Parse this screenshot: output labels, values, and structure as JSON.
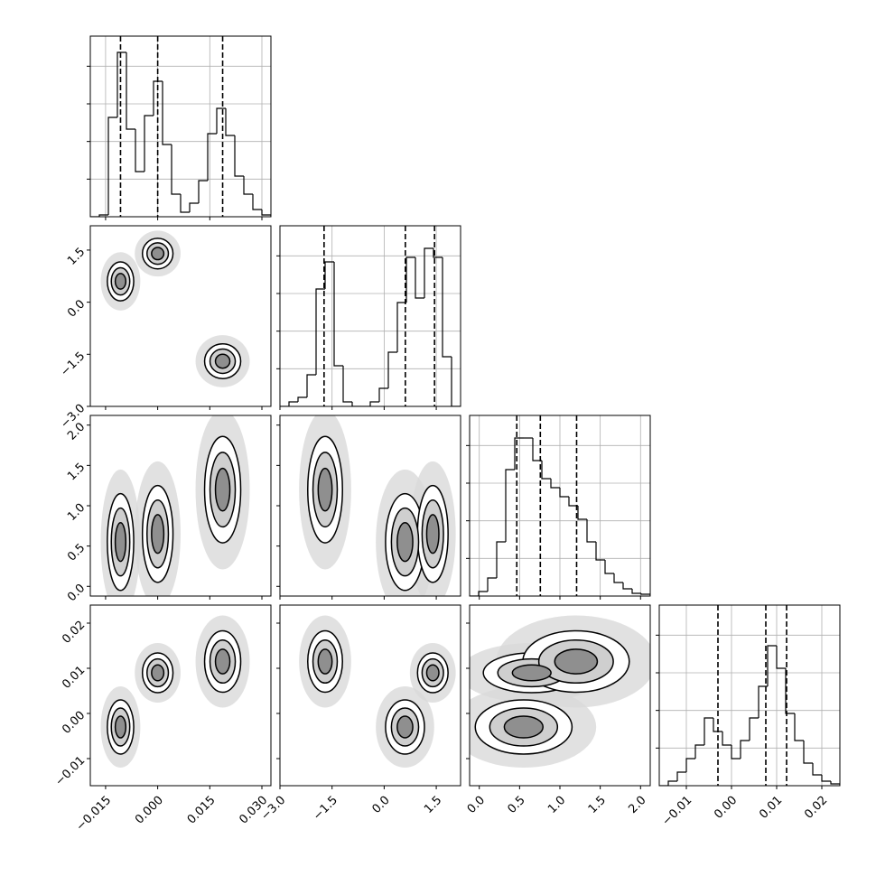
{
  "chart_data": {
    "type": "corner",
    "hist_ylim": [
      0,
      4800
    ],
    "hist_yticks": [
      1000,
      2000,
      3000,
      4000
    ],
    "grid": true,
    "color": "#000000",
    "contour_levels": [
      3,
      2,
      1.4,
      0.8
    ],
    "params": [
      {
        "lim": [
          -0.0194,
          0.0326
        ],
        "ticks": [
          {
            "value": -0.015,
            "label": "−0.015"
          },
          {
            "value": 0,
            "label": "0.000"
          },
          0.015,
          {
            "value": 0.03,
            "label": "0.030"
          }
        ],
        "bins": [
          -0.0194,
          -0.0168,
          -0.0142,
          -0.0116,
          -0.009,
          -0.0064,
          -0.0038,
          -0.0012,
          0.0014,
          0.004,
          0.0066,
          0.0092,
          0.0118,
          0.0144,
          0.017,
          0.0196,
          0.0222,
          0.0248,
          0.0274,
          0.03,
          0.0326
        ],
        "counts": [
          0,
          48,
          2640,
          4368,
          2328,
          1200,
          2688,
          3600,
          1920,
          600,
          120,
          360,
          960,
          2208,
          2880,
          2160,
          1080,
          600,
          192,
          48
        ],
        "quantiles": [
          -0.0107,
          0.0,
          0.0187
        ]
      },
      {
        "lim": [
          -3.0,
          2.2
        ],
        "ticks": [
          {
            "value": -3,
            "label": "−3.0"
          },
          {
            "value": -1.5,
            "label": "−1.5"
          },
          {
            "value": 0,
            "label": "0.0"
          },
          1.5
        ],
        "bins": [
          -3.0,
          -2.74,
          -2.48,
          -2.22,
          -1.96,
          -1.7,
          -1.44,
          -1.18,
          -0.92,
          -0.66,
          -0.4,
          -0.14,
          0.12,
          0.38,
          0.64,
          0.9,
          1.16,
          1.42,
          1.68,
          1.94,
          2.2
        ],
        "counts": [
          0,
          120,
          240,
          840,
          3120,
          3840,
          1080,
          120,
          0,
          0,
          120,
          480,
          1440,
          2760,
          3960,
          2880,
          4200,
          3960,
          1320,
          0
        ],
        "quantiles": [
          -1.73,
          0.61,
          1.45
        ]
      },
      {
        "lim": [
          -0.12,
          2.12
        ],
        "ticks": [
          {
            "value": 0,
            "label": "0.0"
          },
          0.5,
          {
            "value": 1,
            "label": "1.0"
          },
          1.5,
          {
            "value": 2,
            "label": "2.0"
          }
        ],
        "bins": [
          -0.12,
          -0.008,
          0.104,
          0.216,
          0.328,
          0.44,
          0.552,
          0.664,
          0.776,
          0.888,
          1.0,
          1.112,
          1.224,
          1.336,
          1.448,
          1.56,
          1.672,
          1.784,
          1.896,
          2.008,
          2.12
        ],
        "counts": [
          0,
          120,
          480,
          1440,
          3360,
          4200,
          4200,
          3600,
          3120,
          2880,
          2640,
          2400,
          2040,
          1440,
          960,
          600,
          360,
          192,
          72,
          48
        ],
        "quantiles": [
          0.465,
          0.757,
          1.207
        ]
      },
      {
        "lim": [
          -0.016,
          0.024
        ],
        "ticks": [
          {
            "value": -0.01,
            "label": "−0.01"
          },
          {
            "value": 0,
            "label": "0.00"
          },
          0.01,
          0.02
        ],
        "bins": [
          -0.016,
          -0.014,
          -0.012,
          -0.01,
          -0.008,
          -0.006,
          -0.004,
          -0.002,
          0.0,
          0.002,
          0.004,
          0.006,
          0.008,
          0.01,
          0.012,
          0.014,
          0.016,
          0.018,
          0.02,
          0.022,
          0.024
        ],
        "counts": [
          0,
          120,
          360,
          720,
          1080,
          1800,
          1440,
          1080,
          720,
          1200,
          1800,
          2640,
          3720,
          3120,
          1920,
          1200,
          600,
          288,
          120,
          48
        ],
        "quantiles": [
          -0.003,
          0.0076,
          0.0122
        ]
      }
    ],
    "modes": [
      {
        "mean": [
          -0.0107,
          0.6,
          0.55,
          -0.003
        ],
        "sd": [
          0.0019,
          0.28,
          0.3,
          0.003
        ]
      },
      {
        "mean": [
          0.0,
          1.4,
          0.65,
          0.009
        ],
        "sd": [
          0.0022,
          0.22,
          0.3,
          0.0022
        ]
      },
      {
        "mean": [
          0.0187,
          -1.7,
          1.2,
          0.0115
        ],
        "sd": [
          0.0026,
          0.25,
          0.33,
          0.0034
        ]
      }
    ]
  }
}
